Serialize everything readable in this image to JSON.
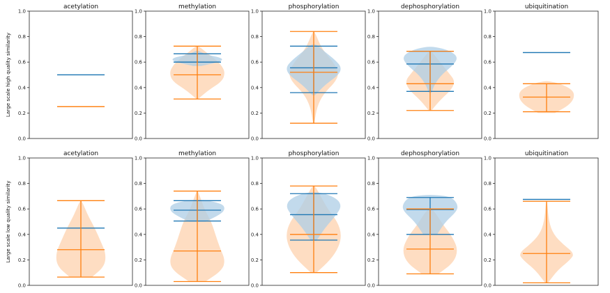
{
  "chart_data": {
    "type": "violin",
    "colors": {
      "series_a": "#1f77b4",
      "series_b": "#ff7f0e",
      "fill_a": "#aecde6",
      "fill_b": "#fdd1ad"
    },
    "ylim": [
      0,
      1
    ],
    "yticks": [
      "0.0",
      "0.2",
      "0.4",
      "0.6",
      "0.8",
      "1.0"
    ],
    "rows": [
      {
        "ylabel": "Large scale high quality similarity",
        "panels": [
          {
            "title": "acetylation",
            "series_a": {
              "min": 0.5,
              "max": 0.5,
              "median": 0.5,
              "density": []
            },
            "series_b": {
              "min": 0.25,
              "max": 0.25,
              "median": 0.25,
              "density": []
            }
          },
          {
            "title": "methylation",
            "series_a": {
              "min": 0.6,
              "max": 0.665,
              "median": 0.6,
              "density": [
                [
                  0.57,
                  0.15
                ],
                [
                  0.6,
                  0.8
                ],
                [
                  0.63,
                  0.95
                ],
                [
                  0.66,
                  0.3
                ],
                [
                  0.69,
                  0.05
                ]
              ]
            },
            "series_b": {
              "min": 0.31,
              "max": 0.725,
              "median": 0.5,
              "density": [
                [
                  0.31,
                  0.03
                ],
                [
                  0.38,
                  0.4
                ],
                [
                  0.45,
                  0.9
                ],
                [
                  0.52,
                  1.0
                ],
                [
                  0.58,
                  0.85
                ],
                [
                  0.63,
                  0.6
                ],
                [
                  0.68,
                  0.3
                ],
                [
                  0.725,
                  0.05
                ]
              ]
            }
          },
          {
            "title": "phosphorylation",
            "series_a": {
              "min": 0.36,
              "max": 0.725,
              "median": 0.555,
              "density": [
                [
                  0.34,
                  0.05
                ],
                [
                  0.42,
                  0.4
                ],
                [
                  0.5,
                  0.9
                ],
                [
                  0.56,
                  1.0
                ],
                [
                  0.62,
                  0.75
                ],
                [
                  0.68,
                  0.4
                ],
                [
                  0.74,
                  0.1
                ]
              ]
            },
            "series_b": {
              "min": 0.12,
              "max": 0.84,
              "median": 0.52,
              "density": [
                [
                  0.12,
                  0.02
                ],
                [
                  0.25,
                  0.12
                ],
                [
                  0.35,
                  0.35
                ],
                [
                  0.45,
                  0.8
                ],
                [
                  0.52,
                  0.9
                ],
                [
                  0.6,
                  0.7
                ],
                [
                  0.7,
                  0.3
                ],
                [
                  0.84,
                  0.03
                ]
              ]
            }
          },
          {
            "title": "dephosphorylation",
            "series_a": {
              "min": 0.37,
              "max": 0.685,
              "median": 0.585,
              "density": [
                [
                  0.36,
                  0.05
                ],
                [
                  0.42,
                  0.15
                ],
                [
                  0.5,
                  0.4
                ],
                [
                  0.58,
                  0.85
                ],
                [
                  0.64,
                  1.0
                ],
                [
                  0.69,
                  0.7
                ],
                [
                  0.72,
                  0.2
                ]
              ]
            },
            "series_b": {
              "min": 0.22,
              "max": 0.685,
              "median": 0.43,
              "density": [
                [
                  0.22,
                  0.05
                ],
                [
                  0.3,
                  0.35
                ],
                [
                  0.38,
                  0.75
                ],
                [
                  0.45,
                  0.9
                ],
                [
                  0.52,
                  0.65
                ],
                [
                  0.6,
                  0.35
                ],
                [
                  0.685,
                  0.05
                ]
              ]
            }
          },
          {
            "title": "ubiquitination",
            "series_a": {
              "min": 0.675,
              "max": 0.675,
              "median": 0.675,
              "density": []
            },
            "series_b": {
              "min": 0.21,
              "max": 0.43,
              "median": 0.325,
              "density": [
                [
                  0.2,
                  0.3
                ],
                [
                  0.26,
                  0.8
                ],
                [
                  0.32,
                  1.0
                ],
                [
                  0.38,
                  0.95
                ],
                [
                  0.43,
                  0.5
                ],
                [
                  0.45,
                  0.1
                ]
              ]
            }
          }
        ]
      },
      {
        "ylabel": "Large scale low quality similarity",
        "panels": [
          {
            "title": "acetylation",
            "series_a": {
              "min": 0.45,
              "max": 0.45,
              "median": 0.45,
              "density": []
            },
            "series_b": {
              "min": 0.065,
              "max": 0.665,
              "median": 0.28,
              "density": [
                [
                  0.065,
                  0.4
                ],
                [
                  0.15,
                  0.85
                ],
                [
                  0.25,
                  0.9
                ],
                [
                  0.35,
                  0.7
                ],
                [
                  0.45,
                  0.5
                ],
                [
                  0.55,
                  0.25
                ],
                [
                  0.665,
                  0.03
                ]
              ]
            }
          },
          {
            "title": "methylation",
            "series_a": {
              "min": 0.505,
              "max": 0.665,
              "median": 0.59,
              "density": [
                [
                  0.5,
                  0.3
                ],
                [
                  0.56,
                  0.85
                ],
                [
                  0.6,
                  1.0
                ],
                [
                  0.64,
                  0.9
                ],
                [
                  0.67,
                  0.3
                ]
              ]
            },
            "series_b": {
              "min": 0.03,
              "max": 0.74,
              "median": 0.27,
              "density": [
                [
                  0.03,
                  0.3
                ],
                [
                  0.12,
                  0.9
                ],
                [
                  0.2,
                  1.0
                ],
                [
                  0.3,
                  0.8
                ],
                [
                  0.4,
                  0.65
                ],
                [
                  0.5,
                  0.5
                ],
                [
                  0.6,
                  0.25
                ],
                [
                  0.74,
                  0.03
                ]
              ]
            }
          },
          {
            "title": "phosphorylation",
            "series_a": {
              "min": 0.355,
              "max": 0.72,
              "median": 0.555,
              "density": [
                [
                  0.35,
                  0.1
                ],
                [
                  0.45,
                  0.4
                ],
                [
                  0.55,
                  0.8
                ],
                [
                  0.62,
                  1.0
                ],
                [
                  0.68,
                  0.85
                ],
                [
                  0.73,
                  0.3
                ]
              ]
            },
            "series_b": {
              "min": 0.1,
              "max": 0.78,
              "median": 0.4,
              "density": [
                [
                  0.1,
                  0.1
                ],
                [
                  0.2,
                  0.6
                ],
                [
                  0.3,
                  0.9
                ],
                [
                  0.4,
                  1.0
                ],
                [
                  0.5,
                  0.85
                ],
                [
                  0.6,
                  0.5
                ],
                [
                  0.7,
                  0.25
                ],
                [
                  0.78,
                  0.05
                ]
              ]
            }
          },
          {
            "title": "dephosphorylation",
            "series_a": {
              "min": 0.4,
              "max": 0.69,
              "median": 0.595,
              "density": [
                [
                  0.4,
                  0.25
                ],
                [
                  0.5,
                  0.55
                ],
                [
                  0.58,
                  0.95
                ],
                [
                  0.63,
                  1.0
                ],
                [
                  0.69,
                  0.8
                ],
                [
                  0.71,
                  0.3
                ]
              ]
            },
            "series_b": {
              "min": 0.09,
              "max": 0.6,
              "median": 0.285,
              "density": [
                [
                  0.09,
                  0.3
                ],
                [
                  0.18,
                  0.85
                ],
                [
                  0.28,
                  1.0
                ],
                [
                  0.38,
                  0.8
                ],
                [
                  0.48,
                  0.45
                ],
                [
                  0.6,
                  0.1
                ]
              ]
            }
          },
          {
            "title": "ubiquitination",
            "series_a": {
              "min": 0.675,
              "max": 0.675,
              "median": 0.675,
              "density": []
            },
            "series_b": {
              "min": 0.02,
              "max": 0.66,
              "median": 0.25,
              "density": [
                [
                  0.02,
                  0.05
                ],
                [
                  0.12,
                  0.4
                ],
                [
                  0.2,
                  0.85
                ],
                [
                  0.25,
                  1.0
                ],
                [
                  0.32,
                  0.6
                ],
                [
                  0.4,
                  0.25
                ],
                [
                  0.5,
                  0.08
                ],
                [
                  0.66,
                  0.02
                ]
              ]
            }
          }
        ]
      }
    ]
  }
}
